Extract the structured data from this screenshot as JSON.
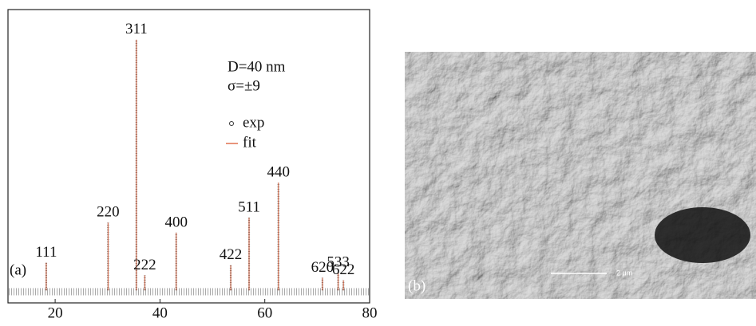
{
  "chart_data": {
    "type": "peaks",
    "panel_label": "(a)",
    "annotations": [
      "D=40 nm",
      "σ=±9"
    ],
    "categories": [
      "111",
      "220",
      "311",
      "222",
      "400",
      "422",
      "511",
      "440",
      "620",
      "533",
      "622"
    ],
    "x": [
      18.3,
      30.1,
      35.5,
      37.1,
      43.1,
      53.5,
      57.0,
      62.6,
      71.0,
      74.0,
      75.0
    ],
    "series": [
      {
        "name": "exp",
        "color": "#333333",
        "values": [
          11,
          27,
          100,
          6,
          23,
          10,
          29,
          43,
          5,
          7,
          4
        ]
      },
      {
        "name": "fit",
        "color": "#e0704f",
        "values": [
          11,
          27,
          100,
          6,
          23,
          10,
          29,
          43,
          5,
          7,
          4
        ]
      }
    ],
    "xlim": [
      11,
      80
    ],
    "xticks": [
      20,
      40,
      60,
      80
    ],
    "ylim": [
      -5,
      112
    ]
  },
  "image": {
    "panel_label": "(b)",
    "scale_bar": "2 μm"
  }
}
